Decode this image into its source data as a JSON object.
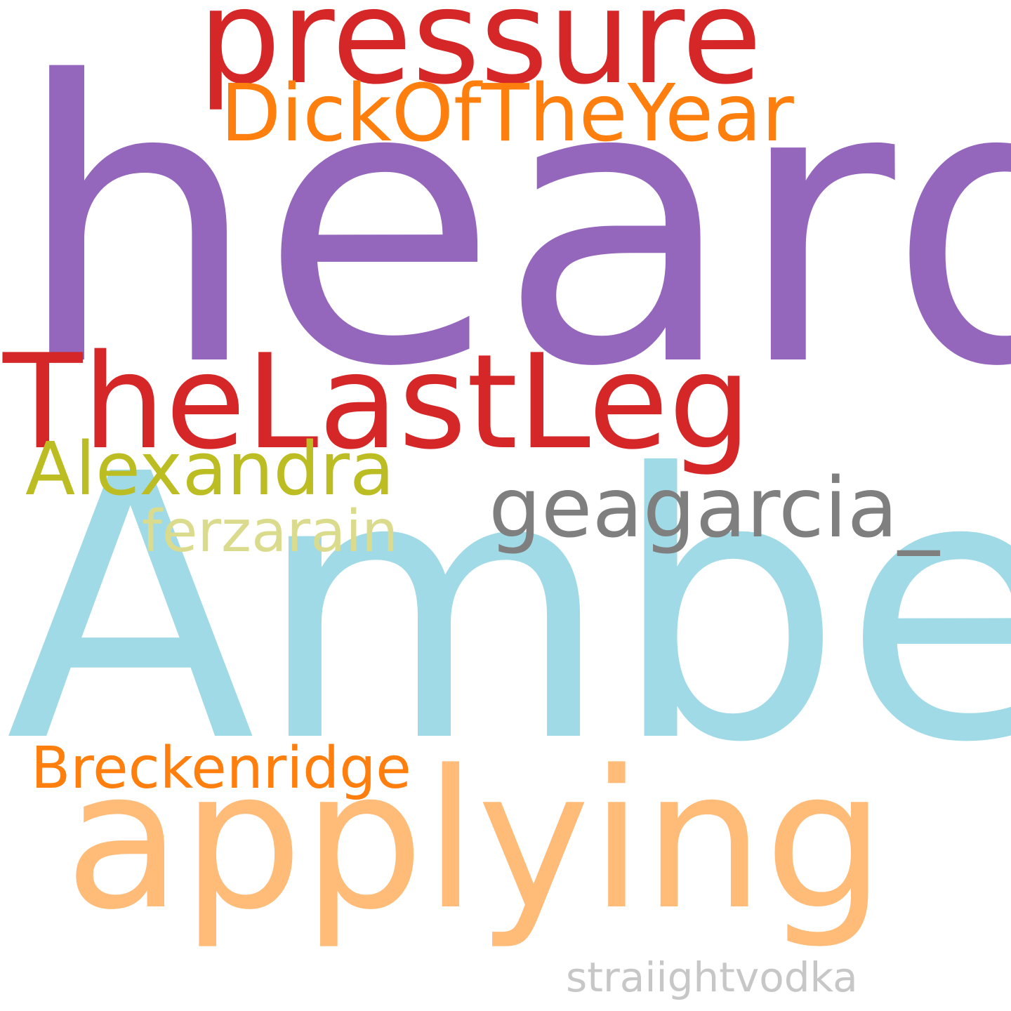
{
  "words": [
    {
      "id": "heard",
      "text": "heard",
      "color": "#9467bd"
    },
    {
      "id": "amber",
      "text": "Amber",
      "color": "#a0dae6"
    },
    {
      "id": "applying",
      "text": "applying",
      "color": "#ffbb78"
    },
    {
      "id": "pressure",
      "text": "pressure",
      "color": "#d62728"
    },
    {
      "id": "thelastleg",
      "text": "TheLastLeg",
      "color": "#d62728"
    },
    {
      "id": "dickoftheyear",
      "text": "DickOfTheYear",
      "color": "#ff7f0e"
    },
    {
      "id": "geagarcia",
      "text": "geagarcia_",
      "color": "#7f7f7f"
    },
    {
      "id": "alexandra",
      "text": "Alexandra",
      "color": "#bcbd22"
    },
    {
      "id": "ferzarain",
      "text": "ferzarain",
      "color": "#dbdb8d"
    },
    {
      "id": "breckenridge",
      "text": "Breckenridge",
      "color": "#ff7f0e"
    },
    {
      "id": "straiightvodka",
      "text": "straiightvodka",
      "color": "#c7c7c7"
    }
  ]
}
